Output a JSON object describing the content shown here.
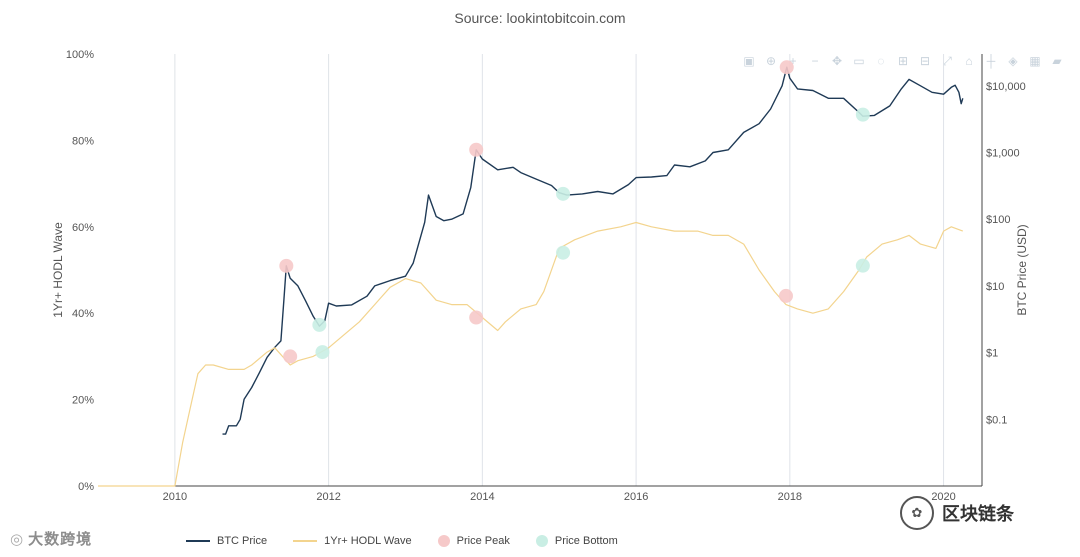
{
  "source": "Source: lookintobitcoin.com",
  "toolbar": {
    "icons": [
      "camera-icon",
      "zoom-icon",
      "plus-icon",
      "minus-icon",
      "pan-icon",
      "box-select-icon",
      "lasso-icon",
      "zoom-in-icon",
      "zoom-out-icon",
      "autoscale-icon",
      "reset-axes-icon",
      "spike-icon",
      "hover-closest-icon",
      "hover-compare-icon",
      "plotly-logo-icon"
    ]
  },
  "legend": [
    {
      "label": "BTC Price",
      "color": "#1f3a56",
      "kind": "line"
    },
    {
      "label": "1Yr+ HODL Wave",
      "color": "#f3d48e",
      "kind": "line"
    },
    {
      "label": "Price Peak",
      "color": "#f6c9c9",
      "kind": "dot"
    },
    {
      "label": "Price Bottom",
      "color": "#c9eee4",
      "kind": "dot"
    }
  ],
  "watermark_left": "大数跨境",
  "watermark_right": "区块链条",
  "chart_data": {
    "type": "line",
    "title": "",
    "x_ticks": [
      "2010",
      "2012",
      "2014",
      "2016",
      "2018",
      "2020"
    ],
    "xlim": [
      2009.0,
      2020.5
    ],
    "y_left": {
      "label": "1Yr+ HODL Wave",
      "ticks": [
        "0%",
        "20%",
        "40%",
        "60%",
        "80%",
        "100%"
      ],
      "range": [
        0,
        100
      ]
    },
    "y_right": {
      "label": "BTC Price (USD)",
      "scale": "log",
      "ticks": [
        "$0.1",
        "$1",
        "$10",
        "$100",
        "$1,000",
        "$10,000"
      ],
      "tick_values": [
        0.1,
        1,
        10,
        100,
        1000,
        10000
      ],
      "range": [
        0.01,
        30000
      ]
    },
    "series": [
      {
        "name": "BTC Price",
        "axis": "right",
        "color": "#1f3a56",
        "points": [
          [
            2010.62,
            0.06
          ],
          [
            2010.65,
            0.06
          ],
          [
            2010.66,
            0.06
          ],
          [
            2010.7,
            0.08
          ],
          [
            2010.8,
            0.08
          ],
          [
            2010.85,
            0.1
          ],
          [
            2010.9,
            0.2
          ],
          [
            2011.0,
            0.3
          ],
          [
            2011.1,
            0.5
          ],
          [
            2011.2,
            0.85
          ],
          [
            2011.3,
            1.2
          ],
          [
            2011.38,
            1.5
          ],
          [
            2011.42,
            6.5
          ],
          [
            2011.45,
            20
          ],
          [
            2011.5,
            13
          ],
          [
            2011.6,
            10
          ],
          [
            2011.7,
            6
          ],
          [
            2011.8,
            3.5
          ],
          [
            2011.88,
            2.5
          ],
          [
            2011.95,
            3
          ],
          [
            2012.0,
            5.5
          ],
          [
            2012.1,
            5
          ],
          [
            2012.3,
            5.2
          ],
          [
            2012.5,
            7
          ],
          [
            2012.6,
            10
          ],
          [
            2012.8,
            12
          ],
          [
            2013.0,
            14
          ],
          [
            2013.1,
            22
          ],
          [
            2013.25,
            90
          ],
          [
            2013.3,
            230
          ],
          [
            2013.4,
            110
          ],
          [
            2013.5,
            95
          ],
          [
            2013.6,
            100
          ],
          [
            2013.75,
            120
          ],
          [
            2013.85,
            300
          ],
          [
            2013.92,
            1100
          ],
          [
            2014.0,
            800
          ],
          [
            2014.2,
            550
          ],
          [
            2014.4,
            600
          ],
          [
            2014.5,
            500
          ],
          [
            2014.7,
            400
          ],
          [
            2014.9,
            320
          ],
          [
            2015.0,
            250
          ],
          [
            2015.1,
            230
          ],
          [
            2015.3,
            240
          ],
          [
            2015.5,
            260
          ],
          [
            2015.7,
            240
          ],
          [
            2015.9,
            330
          ],
          [
            2016.0,
            420
          ],
          [
            2016.2,
            430
          ],
          [
            2016.4,
            450
          ],
          [
            2016.5,
            650
          ],
          [
            2016.7,
            610
          ],
          [
            2016.9,
            750
          ],
          [
            2017.0,
            1000
          ],
          [
            2017.2,
            1100
          ],
          [
            2017.4,
            2000
          ],
          [
            2017.6,
            2700
          ],
          [
            2017.75,
            4500
          ],
          [
            2017.9,
            10000
          ],
          [
            2017.96,
            19000
          ],
          [
            2018.0,
            13000
          ],
          [
            2018.1,
            9000
          ],
          [
            2018.3,
            8500
          ],
          [
            2018.5,
            6500
          ],
          [
            2018.7,
            6500
          ],
          [
            2018.9,
            4000
          ],
          [
            2018.95,
            3500
          ],
          [
            2019.1,
            3600
          ],
          [
            2019.3,
            5000
          ],
          [
            2019.45,
            9000
          ],
          [
            2019.55,
            12500
          ],
          [
            2019.7,
            10000
          ],
          [
            2019.85,
            8000
          ],
          [
            2020.0,
            7500
          ],
          [
            2020.1,
            9500
          ],
          [
            2020.15,
            10200
          ],
          [
            2020.2,
            8000
          ],
          [
            2020.23,
            5400
          ],
          [
            2020.25,
            6500
          ]
        ]
      },
      {
        "name": "1Yr+ HODL Wave",
        "axis": "left",
        "color": "#f3d48e",
        "points": [
          [
            2009.0,
            0
          ],
          [
            2010.0,
            0
          ],
          [
            2010.1,
            10
          ],
          [
            2010.2,
            18
          ],
          [
            2010.3,
            26
          ],
          [
            2010.4,
            28
          ],
          [
            2010.5,
            28
          ],
          [
            2010.7,
            27
          ],
          [
            2010.9,
            27
          ],
          [
            2011.0,
            28
          ],
          [
            2011.2,
            31
          ],
          [
            2011.3,
            32
          ],
          [
            2011.5,
            28
          ],
          [
            2011.6,
            29
          ],
          [
            2011.8,
            30
          ],
          [
            2011.9,
            31
          ],
          [
            2012.0,
            32
          ],
          [
            2012.2,
            35
          ],
          [
            2012.4,
            38
          ],
          [
            2012.6,
            42
          ],
          [
            2012.8,
            46
          ],
          [
            2013.0,
            48
          ],
          [
            2013.2,
            47
          ],
          [
            2013.4,
            43
          ],
          [
            2013.6,
            42
          ],
          [
            2013.8,
            42
          ],
          [
            2014.0,
            39
          ],
          [
            2014.2,
            36
          ],
          [
            2014.3,
            38
          ],
          [
            2014.5,
            41
          ],
          [
            2014.7,
            42
          ],
          [
            2014.8,
            45
          ],
          [
            2015.0,
            55
          ],
          [
            2015.2,
            57
          ],
          [
            2015.5,
            59
          ],
          [
            2015.8,
            60
          ],
          [
            2016.0,
            61
          ],
          [
            2016.2,
            60
          ],
          [
            2016.5,
            59
          ],
          [
            2016.8,
            59
          ],
          [
            2017.0,
            58
          ],
          [
            2017.2,
            58
          ],
          [
            2017.4,
            56
          ],
          [
            2017.6,
            50
          ],
          [
            2017.8,
            45
          ],
          [
            2017.95,
            42
          ],
          [
            2018.1,
            41
          ],
          [
            2018.3,
            40
          ],
          [
            2018.5,
            41
          ],
          [
            2018.7,
            45
          ],
          [
            2018.9,
            50
          ],
          [
            2019.0,
            53
          ],
          [
            2019.2,
            56
          ],
          [
            2019.4,
            57
          ],
          [
            2019.55,
            58
          ],
          [
            2019.7,
            56
          ],
          [
            2019.9,
            55
          ],
          [
            2020.0,
            59
          ],
          [
            2020.1,
            60
          ],
          [
            2020.25,
            59
          ]
        ]
      }
    ],
    "markers": {
      "peaks": [
        [
          2011.45,
          20,
          "right"
        ],
        [
          2013.92,
          1100,
          "right"
        ],
        [
          2017.96,
          19000,
          "right"
        ],
        [
          2011.5,
          30,
          "left"
        ],
        [
          2013.92,
          39,
          "left"
        ],
        [
          2017.95,
          44,
          "left"
        ]
      ],
      "bottoms": [
        [
          2011.88,
          2.6,
          "right"
        ],
        [
          2015.05,
          240,
          "right"
        ],
        [
          2018.95,
          3700,
          "right"
        ],
        [
          2011.92,
          31,
          "left"
        ],
        [
          2015.05,
          54,
          "left"
        ],
        [
          2018.95,
          51,
          "left"
        ]
      ]
    }
  }
}
